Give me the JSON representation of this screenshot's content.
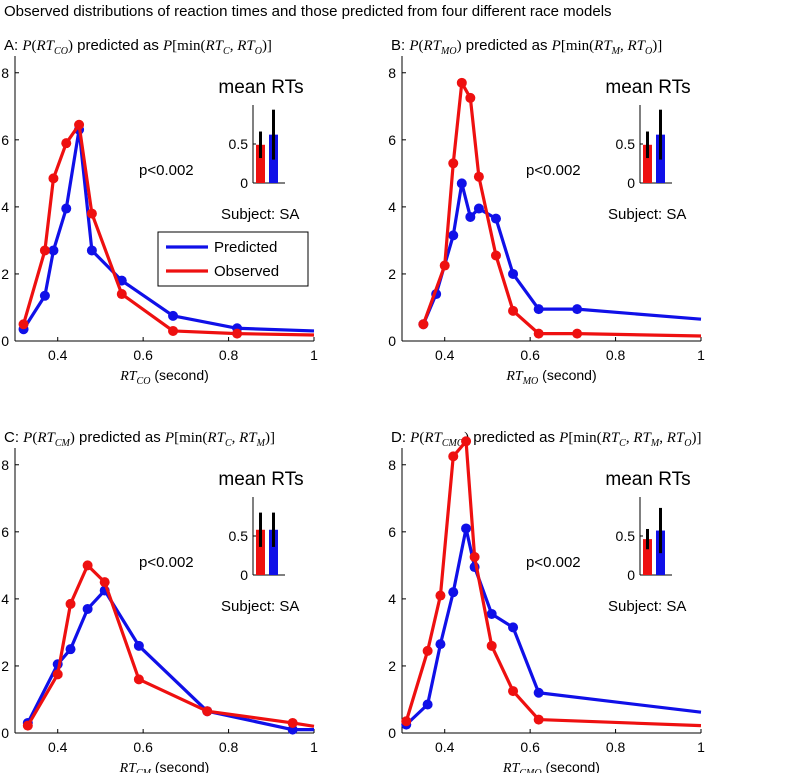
{
  "figure_title": "Observed distributions of reaction times and those predicted from four different race models",
  "colors": {
    "predicted": "#1010e8",
    "observed": "#ee1010",
    "axis": "#000000",
    "err": "#000000"
  },
  "legend": {
    "predicted": "Predicted",
    "observed": "Observed"
  },
  "panels": [
    {
      "letter": "A:",
      "title_pre": "P(RT",
      "title_sub": "CO",
      "title_post": ")",
      "title_mid": "predicted as",
      "title_math": "P[min(RT",
      "title_args": [
        [
          "C",
          ","
        ],
        [
          "O",
          ""
        ]
      ],
      "title_text": "P(RT_CO) predicted as P[min(RT_C, RT_O)]",
      "xlabel_var": "RT",
      "xlabel_sub": "CO",
      "xlabel_unit": "(second)",
      "pvalue": "p<0.002",
      "subject": "Subject: SA",
      "mean_title": "mean RTs",
      "show_legend": true
    },
    {
      "letter": "B:",
      "title_pre": "P(RT",
      "title_sub": "MO",
      "title_text": "P(RT_MO) predicted as P[min(RT_M, RT_O)]",
      "xlabel_var": "RT",
      "xlabel_sub": "MO",
      "xlabel_unit": "(second)",
      "pvalue": "p<0.002",
      "subject": "Subject: SA",
      "mean_title": "mean RTs",
      "show_legend": false
    },
    {
      "letter": "C:",
      "title_pre": "P(RT",
      "title_sub": "CM",
      "title_text": "P(RT_CM) predicted as P[min(RT_C, RT_M)]",
      "xlabel_var": "RT",
      "xlabel_sub": "CM",
      "xlabel_unit": "(second)",
      "pvalue": "p<0.002",
      "subject": "Subject: SA",
      "mean_title": "mean RTs",
      "show_legend": false
    },
    {
      "letter": "D:",
      "title_pre": "P(RT",
      "title_sub": "CMO",
      "title_text": "P(RT_CMO) predicted as P[min(RT_C, RT_M, RT_O)]",
      "xlabel_var": "RT",
      "xlabel_sub": "CMO",
      "xlabel_unit": "(second)",
      "pvalue": "p<0.002",
      "subject": "Subject: SA",
      "mean_title": "mean RTs",
      "show_legend": false
    }
  ],
  "title_parts": {
    "A": {
      "lhs_sub": "CO",
      "args": [
        "C",
        "O"
      ]
    },
    "B": {
      "lhs_sub": "MO",
      "args": [
        "M",
        "O"
      ]
    },
    "C": {
      "lhs_sub": "CM",
      "args": [
        "C",
        "M"
      ]
    },
    "D": {
      "lhs_sub": "CMO",
      "args": [
        "C",
        "M",
        "O"
      ]
    }
  },
  "chart_data": [
    {
      "type": "line",
      "panel": "A",
      "xlim": [
        0.3,
        1.0
      ],
      "ylim": [
        0,
        8.5
      ],
      "xticks": [
        0.4,
        0.6,
        0.8,
        1
      ],
      "xtick_labels": [
        "0.4",
        "0.6",
        "0.8",
        "1"
      ],
      "yticks": [
        0,
        2,
        4,
        6,
        8
      ],
      "ytick_labels": [
        "0",
        "2",
        "4",
        "6",
        "8"
      ],
      "series": [
        {
          "name": "Predicted",
          "x": [
            0.32,
            0.37,
            0.39,
            0.42,
            0.45,
            0.48,
            0.55,
            0.67,
            0.82,
            1.0
          ],
          "y": [
            0.35,
            1.35,
            2.7,
            3.95,
            6.3,
            2.7,
            1.8,
            0.75,
            0.38,
            0.3
          ]
        },
        {
          "name": "Observed",
          "x": [
            0.32,
            0.37,
            0.39,
            0.42,
            0.45,
            0.48,
            0.55,
            0.67,
            0.82,
            1.0
          ],
          "y": [
            0.5,
            2.7,
            4.85,
            5.9,
            6.45,
            3.8,
            1.4,
            0.3,
            0.22,
            0.18
          ]
        }
      ],
      "inset": {
        "title": "mean RTs",
        "yticks": [
          0,
          0.5
        ],
        "ytick_labels": [
          "0",
          "0.5"
        ],
        "ylim": [
          0,
          1.0
        ],
        "bars": [
          {
            "name": "Observed",
            "value": 0.49,
            "err": 0.17
          },
          {
            "name": "Predicted",
            "value": 0.62,
            "err": 0.32
          }
        ]
      }
    },
    {
      "type": "line",
      "panel": "B",
      "xlim": [
        0.3,
        1.0
      ],
      "ylim": [
        0,
        8.5
      ],
      "xticks": [
        0.4,
        0.6,
        0.8,
        1
      ],
      "xtick_labels": [
        "0.4",
        "0.6",
        "0.8",
        "1"
      ],
      "yticks": [
        0,
        2,
        4,
        6,
        8
      ],
      "ytick_labels": [
        "0",
        "2",
        "4",
        "6",
        "8"
      ],
      "series": [
        {
          "name": "Predicted",
          "x": [
            0.35,
            0.38,
            0.42,
            0.44,
            0.46,
            0.48,
            0.52,
            0.56,
            0.62,
            0.71,
            1.0
          ],
          "y": [
            0.5,
            1.4,
            3.15,
            4.7,
            3.7,
            3.95,
            3.65,
            2.0,
            0.95,
            0.95,
            0.65
          ]
        },
        {
          "name": "Observed",
          "x": [
            0.35,
            0.4,
            0.42,
            0.44,
            0.46,
            0.48,
            0.52,
            0.56,
            0.62,
            0.71,
            1.0
          ],
          "y": [
            0.5,
            2.25,
            5.3,
            7.7,
            7.25,
            4.9,
            2.55,
            0.9,
            0.22,
            0.22,
            0.15
          ]
        }
      ],
      "inset": {
        "title": "mean RTs",
        "yticks": [
          0,
          0.5
        ],
        "ytick_labels": [
          "0",
          "0.5"
        ],
        "ylim": [
          0,
          1.0
        ],
        "bars": [
          {
            "name": "Observed",
            "value": 0.49,
            "err": 0.17
          },
          {
            "name": "Predicted",
            "value": 0.62,
            "err": 0.32
          }
        ]
      }
    },
    {
      "type": "line",
      "panel": "C",
      "xlim": [
        0.3,
        1.0
      ],
      "ylim": [
        0,
        8.5
      ],
      "xticks": [
        0.4,
        0.6,
        0.8,
        1
      ],
      "xtick_labels": [
        "0.4",
        "0.6",
        "0.8",
        "1"
      ],
      "yticks": [
        0,
        2,
        4,
        6,
        8
      ],
      "ytick_labels": [
        "0",
        "2",
        "4",
        "6",
        "8"
      ],
      "series": [
        {
          "name": "Predicted",
          "x": [
            0.33,
            0.4,
            0.43,
            0.47,
            0.51,
            0.59,
            0.75,
            0.95,
            1.0
          ],
          "y": [
            0.3,
            2.05,
            2.5,
            3.7,
            4.25,
            2.6,
            0.65,
            0.1,
            0.1
          ]
        },
        {
          "name": "Observed",
          "x": [
            0.33,
            0.4,
            0.43,
            0.47,
            0.51,
            0.59,
            0.75,
            0.95,
            1.0
          ],
          "y": [
            0.22,
            1.75,
            3.85,
            5.0,
            4.5,
            1.6,
            0.65,
            0.3,
            0.2
          ]
        }
      ],
      "inset": {
        "title": "mean RTs",
        "yticks": [
          0,
          0.5
        ],
        "ytick_labels": [
          "0",
          "0.5"
        ],
        "ylim": [
          0,
          1.0
        ],
        "bars": [
          {
            "name": "Observed",
            "value": 0.58,
            "err": 0.22
          },
          {
            "name": "Predicted",
            "value": 0.58,
            "err": 0.22
          }
        ]
      }
    },
    {
      "type": "line",
      "panel": "D",
      "xlim": [
        0.3,
        1.0
      ],
      "ylim": [
        0,
        8.5
      ],
      "xticks": [
        0.4,
        0.6,
        0.8,
        1
      ],
      "xtick_labels": [
        "0.4",
        "0.6",
        "0.8",
        "1"
      ],
      "yticks": [
        0,
        2,
        4,
        6,
        8
      ],
      "ytick_labels": [
        "0",
        "2",
        "4",
        "6",
        "8"
      ],
      "series": [
        {
          "name": "Predicted",
          "x": [
            0.31,
            0.36,
            0.39,
            0.42,
            0.45,
            0.47,
            0.51,
            0.56,
            0.62,
            1.0
          ],
          "y": [
            0.25,
            0.85,
            2.65,
            4.2,
            6.1,
            4.95,
            3.55,
            3.15,
            1.2,
            0.62
          ]
        },
        {
          "name": "Observed",
          "x": [
            0.31,
            0.36,
            0.39,
            0.42,
            0.45,
            0.47,
            0.51,
            0.56,
            0.62,
            1.0
          ],
          "y": [
            0.35,
            2.45,
            4.1,
            8.25,
            8.7,
            5.25,
            2.6,
            1.25,
            0.4,
            0.22
          ]
        }
      ],
      "inset": {
        "title": "mean RTs",
        "yticks": [
          0,
          0.5
        ],
        "ytick_labels": [
          "0",
          "0.5"
        ],
        "ylim": [
          0,
          1.0
        ],
        "bars": [
          {
            "name": "Observed",
            "value": 0.46,
            "err": 0.13
          },
          {
            "name": "Predicted",
            "value": 0.57,
            "err": 0.29
          }
        ]
      }
    }
  ]
}
